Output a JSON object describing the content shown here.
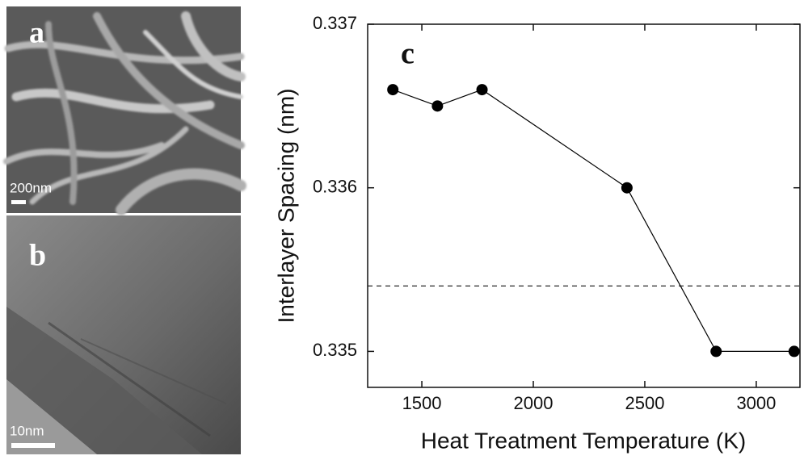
{
  "panels": [
    {
      "label": "a",
      "scale_bar": "200nm"
    },
    {
      "label": "b",
      "scale_bar": "10nm"
    }
  ],
  "chart_data": {
    "type": "line",
    "panel_label": "c",
    "xlabel": "Heat Treatment Temperature (K)",
    "ylabel": "Interlayer Spacing (nm)",
    "x": [
      1370,
      1570,
      1770,
      2420,
      2820,
      3170
    ],
    "values": [
      0.3366,
      0.3365,
      0.3366,
      0.336,
      0.335,
      0.335
    ],
    "color": "#000000",
    "reference_line": 0.3354,
    "xlim": [
      1257,
      3196
    ],
    "ylim": [
      0.33478,
      0.337
    ],
    "xticks": [
      1500,
      2000,
      2500,
      3000
    ],
    "yticks": [
      0.335,
      0.336,
      0.337
    ]
  }
}
